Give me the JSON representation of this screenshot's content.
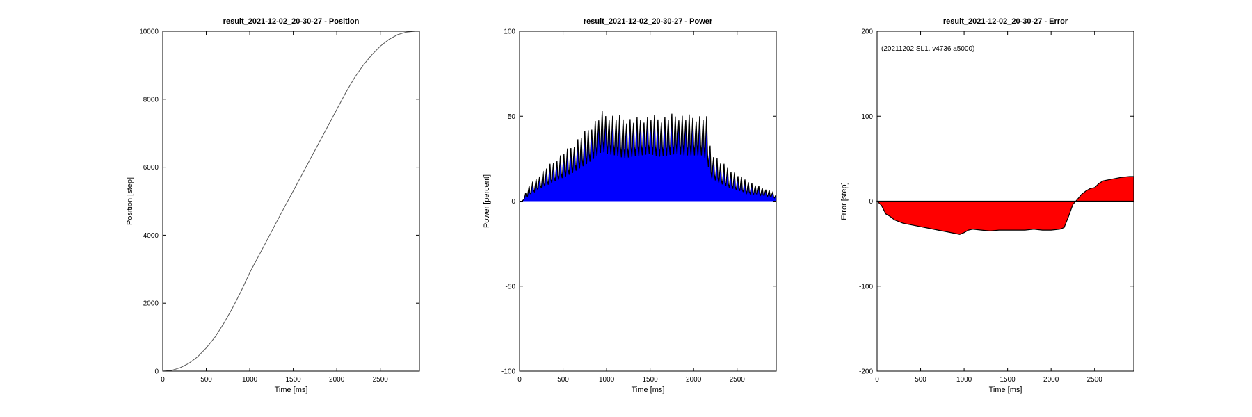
{
  "chart_data": [
    {
      "type": "line",
      "title": "result_2021-12-02_20-30-27 - Position",
      "xlabel": "Time [ms]",
      "ylabel": "Position [step]",
      "xlim": [
        0,
        2950
      ],
      "ylim": [
        0,
        10000
      ],
      "xticks": [
        "0",
        "500",
        "1000",
        "1500",
        "2000",
        "2500"
      ],
      "yticks": [
        "0",
        "2000",
        "4000",
        "6000",
        "8000",
        "10000"
      ],
      "line_color": "#555555",
      "series": [
        {
          "x": [
            0,
            100,
            200,
            300,
            400,
            500,
            600,
            700,
            800,
            900,
            1000,
            1100,
            1200,
            1300,
            1400,
            1500,
            1600,
            1700,
            1800,
            1900,
            2000,
            2100,
            2200,
            2300,
            2400,
            2500,
            2600,
            2700,
            2800,
            2900,
            2950
          ],
          "y": [
            0,
            20,
            100,
            230,
            420,
            680,
            1000,
            1400,
            1850,
            2350,
            2900,
            3380,
            3860,
            4350,
            4830,
            5300,
            5780,
            6260,
            6740,
            7220,
            7700,
            8180,
            8620,
            8990,
            9300,
            9560,
            9760,
            9900,
            9975,
            10000,
            10000
          ]
        }
      ]
    },
    {
      "type": "area",
      "title": "result_2021-12-02_20-30-27 - Power",
      "xlabel": "Time [ms]",
      "ylabel": "Power [percent]",
      "xlim": [
        0,
        2950
      ],
      "ylim": [
        -100,
        100
      ],
      "xticks": [
        "0",
        "500",
        "1000",
        "1500",
        "2000",
        "2500"
      ],
      "yticks": [
        "-100",
        "-50",
        "0",
        "50",
        "100"
      ],
      "fill_color": "#0000ff",
      "line_color": "#000000",
      "envelope": {
        "x": [
          30,
          100,
          200,
          300,
          400,
          500,
          600,
          700,
          800,
          900,
          950,
          1000,
          1100,
          1200,
          1300,
          1400,
          1500,
          1600,
          1700,
          1800,
          1900,
          2000,
          2100,
          2150,
          2200,
          2300,
          2400,
          2500,
          2600,
          2700,
          2800,
          2900,
          2950
        ],
        "base": [
          0,
          4,
          8,
          11,
          14,
          17,
          20,
          24,
          28,
          33,
          36,
          34,
          33,
          31,
          32,
          33,
          34,
          32,
          33,
          34,
          33,
          33,
          33,
          30,
          17,
          13,
          10,
          8,
          6,
          5,
          4,
          3,
          2
        ],
        "peak": [
          0,
          9,
          14,
          20,
          24,
          29,
          33,
          39,
          44,
          50,
          53,
          52,
          51,
          50,
          49,
          50,
          51,
          50,
          51,
          52,
          51,
          51,
          51,
          50,
          30,
          24,
          20,
          16,
          13,
          10,
          8,
          6,
          4
        ]
      }
    },
    {
      "type": "area",
      "title": "result_2021-12-02_20-30-27 - Error",
      "xlabel": "Time [ms]",
      "ylabel": "Error [step]",
      "annotation": "(20211202 SL1. v4736 a5000)",
      "xlim": [
        0,
        2950
      ],
      "ylim": [
        -200,
        200
      ],
      "xticks": [
        "0",
        "500",
        "1000",
        "1500",
        "2000",
        "2500"
      ],
      "yticks": [
        "-200",
        "-100",
        "0",
        "100",
        "200"
      ],
      "fill_color": "#ff0000",
      "line_color": "#000000",
      "series": [
        {
          "x": [
            0,
            50,
            100,
            150,
            200,
            300,
            400,
            500,
            600,
            700,
            800,
            900,
            950,
            1000,
            1050,
            1100,
            1200,
            1300,
            1400,
            1500,
            1600,
            1700,
            1800,
            1900,
            2000,
            2100,
            2150,
            2200,
            2250,
            2300,
            2350,
            2400,
            2450,
            2500,
            2550,
            2600,
            2700,
            2800,
            2900,
            2950
          ],
          "y": [
            0,
            -5,
            -15,
            -18,
            -22,
            -26,
            -28,
            -30,
            -32,
            -34,
            -36,
            -38,
            -39,
            -37,
            -34,
            -33,
            -34,
            -35,
            -34,
            -34,
            -34,
            -34,
            -33,
            -34,
            -34,
            -33,
            -31,
            -18,
            -4,
            2,
            8,
            12,
            15,
            16,
            21,
            24,
            26,
            28,
            29,
            29
          ]
        }
      ]
    }
  ]
}
